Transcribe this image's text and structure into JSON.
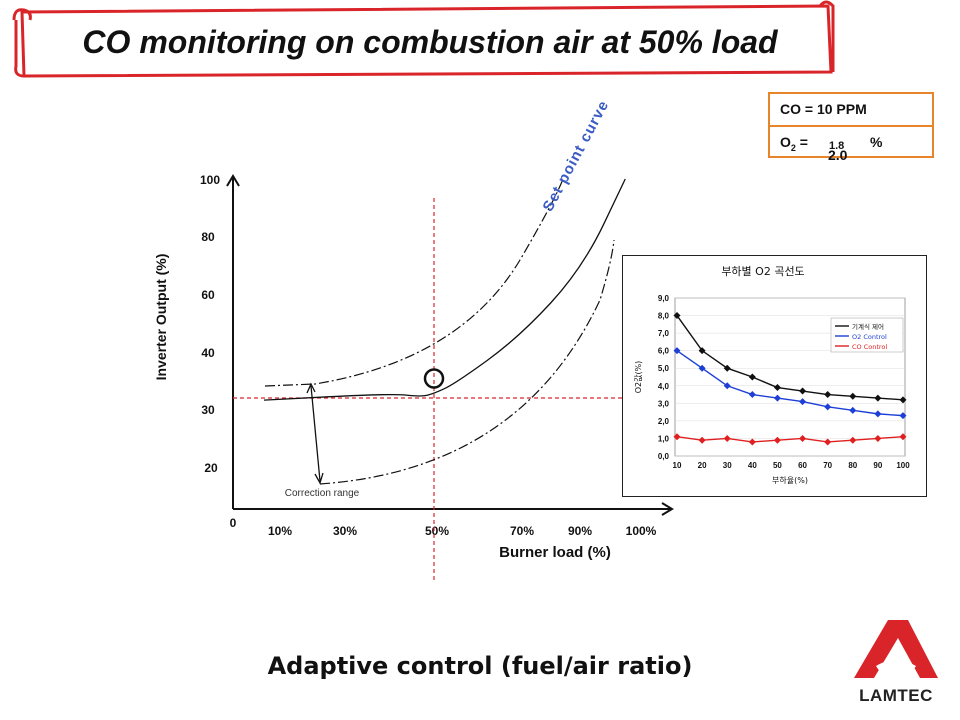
{
  "title": "CO monitoring on combustion air at 50% load",
  "co_box": {
    "co_label": "CO = 10  PPM",
    "o2_prefix": "O",
    "o2_sub": "2",
    "o2_eq": " = ",
    "o2_value_small": "1.8",
    "o2_value_large": "2.0",
    "o2_unit": "%"
  },
  "footer_caption": "Adaptive control (fuel/air ratio)",
  "logo_text": "LAMTEC",
  "colors": {
    "accent_orange": "#e8852a",
    "title_border": "#d9252a",
    "guide_red": "#d9252a"
  },
  "chart_data": [
    {
      "type": "line",
      "title": "",
      "xlabel": "Burner load (%)",
      "ylabel": "Inverter Output (%)",
      "x_tick_labels": [
        "10%",
        "30%",
        "50%",
        "70%",
        "90%",
        "100%"
      ],
      "y_tick_labels": [
        "0",
        "20",
        "30",
        "40",
        "60",
        "80",
        "100"
      ],
      "curve_label": "Set point curve",
      "annotation": "Correction range",
      "series": [
        {
          "values": [
            {
              "x": 10,
              "y": 33
            },
            {
              "x": 40,
              "y": 35
            },
            {
              "x": 47,
              "y": 34
            },
            {
              "x": 50,
              "y": 35
            },
            {
              "x": 55,
              "y": 38
            },
            {
              "x": 70,
              "y": 52
            },
            {
              "x": 85,
              "y": 73
            },
            {
              "x": 95,
              "y": 100
            }
          ]
        }
      ],
      "marker_point": {
        "x": 50,
        "y": 35
      }
    },
    {
      "type": "line",
      "title": "부하별 O2 곡선도",
      "xlabel": "부하율(%)",
      "ylabel": "O2값(%)",
      "categories": [
        10,
        20,
        30,
        40,
        50,
        60,
        70,
        80,
        90,
        100
      ],
      "ylim": [
        0,
        9
      ],
      "y_ticks": [
        "0,0",
        "1,0",
        "2,0",
        "3,0",
        "4,0",
        "5,0",
        "6,0",
        "7,0",
        "8,0",
        "9,0"
      ],
      "legend_position": "top-right",
      "series": [
        {
          "name": "기계식 제어",
          "color": "#111111",
          "values": [
            8.0,
            6.0,
            5.0,
            4.5,
            3.9,
            3.7,
            3.5,
            3.4,
            3.3,
            3.2
          ]
        },
        {
          "name": "O2 Control",
          "color": "#1d3fd6",
          "values": [
            6.0,
            5.0,
            4.0,
            3.5,
            3.3,
            3.1,
            2.8,
            2.6,
            2.4,
            2.3
          ]
        },
        {
          "name": "CO Control",
          "color": "#e02020",
          "values": [
            1.1,
            0.9,
            1.0,
            0.8,
            0.9,
            1.0,
            0.8,
            0.9,
            1.0,
            1.1
          ]
        }
      ]
    }
  ]
}
